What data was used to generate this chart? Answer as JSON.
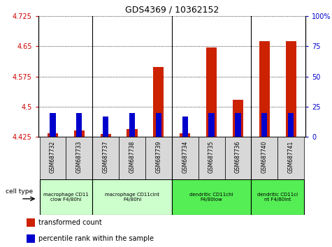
{
  "title": "GDS4369 / 10362152",
  "samples": [
    "GSM687732",
    "GSM687733",
    "GSM687737",
    "GSM687738",
    "GSM687739",
    "GSM687734",
    "GSM687735",
    "GSM687736",
    "GSM687740",
    "GSM687741"
  ],
  "transformed_counts": [
    4.435,
    4.441,
    4.432,
    4.444,
    4.598,
    4.435,
    4.648,
    4.518,
    4.662,
    4.662
  ],
  "percentile_ranks": [
    20,
    20,
    17,
    20,
    20,
    17,
    20,
    20,
    20,
    20
  ],
  "ylim_left": [
    4.425,
    4.725
  ],
  "ylim_right": [
    0,
    100
  ],
  "yticks_left": [
    4.425,
    4.5,
    4.575,
    4.65,
    4.725
  ],
  "yticks_right": [
    0,
    25,
    50,
    75,
    100
  ],
  "ytick_labels_left": [
    "4.425",
    "4.5",
    "4.575",
    "4.65",
    "4.725"
  ],
  "ytick_labels_right": [
    "0",
    "25",
    "50",
    "75",
    "100%"
  ],
  "cell_type_groups": [
    {
      "label": "macrophage CD11\nclow F4/80hi",
      "start": 0,
      "end": 2,
      "color": "#ccffcc"
    },
    {
      "label": "macrophage CD11cint\nF4/80hi",
      "start": 2,
      "end": 5,
      "color": "#ccffcc"
    },
    {
      "label": "dendritic CD11chi\nF4/80low",
      "start": 5,
      "end": 8,
      "color": "#55ee55"
    },
    {
      "label": "dendritic CD11ci\nnt F4/80int",
      "start": 8,
      "end": 10,
      "color": "#55ee55"
    }
  ],
  "group_separators": [
    1.5,
    4.5,
    7.5
  ],
  "bar_color_red": "#cc2200",
  "bar_color_blue": "#0000cc",
  "bar_width": 0.4,
  "bar_bottom": 4.425,
  "plot_bg": "#ffffff",
  "left_tick_color": "#cc0000",
  "right_tick_color": "#0000cc",
  "legend_red_label": "transformed count",
  "legend_blue_label": "percentile rank within the sample",
  "cell_type_label": "cell type"
}
